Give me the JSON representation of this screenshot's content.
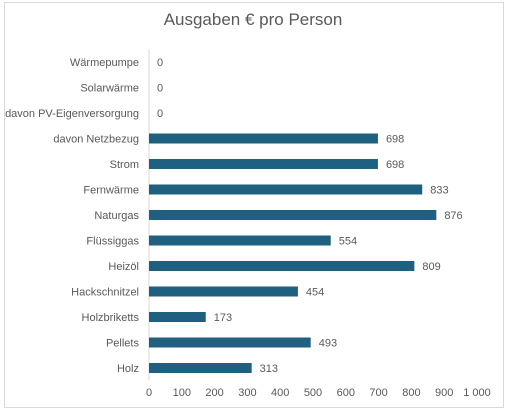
{
  "chart_data": {
    "type": "bar",
    "orientation": "horizontal",
    "title": "Ausgaben € pro Person",
    "categories": [
      "Wärmepumpe",
      "Solarwärme",
      "davon PV-Eigenversorgung",
      "davon Netzbezug",
      "Strom",
      "Fernwärme",
      "Naturgas",
      "Flüssiggas",
      "Heizöl",
      "Hackschnitzel",
      "Holzbriketts",
      "Pellets",
      "Holz"
    ],
    "values": [
      0,
      0,
      0,
      698,
      698,
      833,
      876,
      554,
      809,
      454,
      173,
      493,
      313
    ],
    "value_labels": [
      "0",
      "0",
      "0",
      "698",
      "698",
      "833",
      "876",
      "554",
      "809",
      "454",
      "173",
      "493",
      "313"
    ],
    "x_ticks": [
      0,
      100,
      200,
      300,
      400,
      500,
      600,
      700,
      800,
      900,
      1000
    ],
    "x_tick_labels": [
      "0",
      "100",
      "200",
      "300",
      "400",
      "500",
      "600",
      "700",
      "800",
      "900",
      "1 000"
    ],
    "xlim": [
      0,
      1000
    ],
    "xlabel": "",
    "ylabel": "",
    "grid": false,
    "legend": "none",
    "bar_color": "#1f5f7f"
  }
}
